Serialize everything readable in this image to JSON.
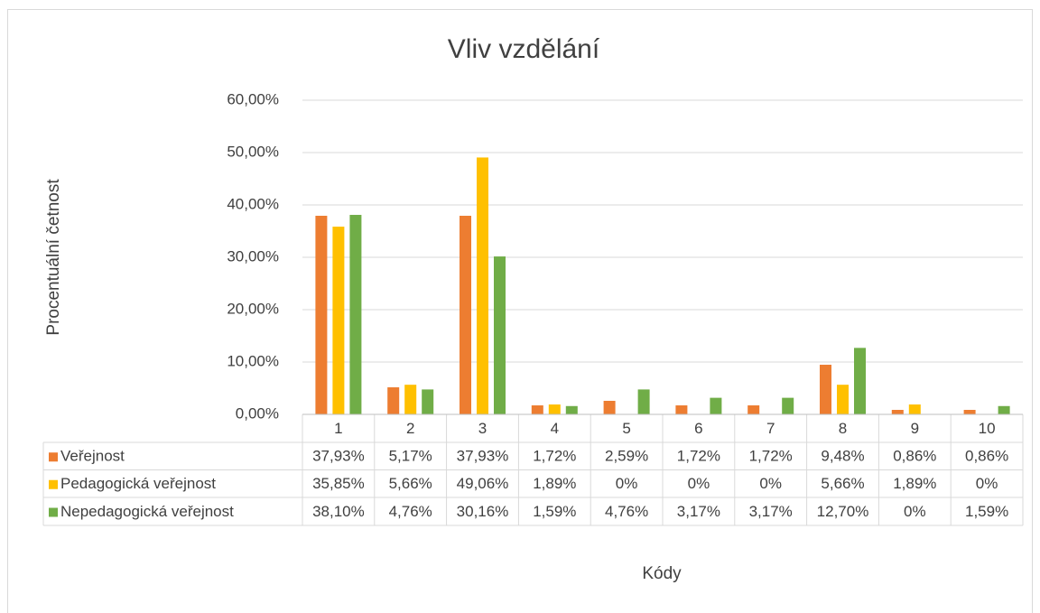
{
  "chart_data": {
    "type": "bar",
    "title": "Vliv vzdělání",
    "y_label": "Procentuální četnost",
    "x_label": "Kódy",
    "categories": [
      "1",
      "2",
      "3",
      "4",
      "5",
      "6",
      "7",
      "8",
      "9",
      "10"
    ],
    "series": [
      {
        "name": "Veřejnost",
        "color": "#ed7d31",
        "values": [
          37.93,
          5.17,
          37.93,
          1.72,
          2.59,
          1.72,
          1.72,
          9.48,
          0.86,
          0.86
        ],
        "value_labels": [
          "37,93%",
          "5,17%",
          "37,93%",
          "1,72%",
          "2,59%",
          "1,72%",
          "1,72%",
          "9,48%",
          "0,86%",
          "0,86%"
        ]
      },
      {
        "name": "Pedagogická veřejnost",
        "color": "#ffc000",
        "values": [
          35.85,
          5.66,
          49.06,
          1.89,
          0,
          0,
          0,
          5.66,
          1.89,
          0
        ],
        "value_labels": [
          "35,85%",
          "5,66%",
          "49,06%",
          "1,89%",
          "0%",
          "0%",
          "0%",
          "5,66%",
          "1,89%",
          "0%"
        ]
      },
      {
        "name": "Nepedagogická veřejnost",
        "color": "#70ad47",
        "values": [
          38.1,
          4.76,
          30.16,
          1.59,
          4.76,
          3.17,
          3.17,
          12.7,
          0,
          1.59
        ],
        "value_labels": [
          "38,10%",
          "4,76%",
          "30,16%",
          "1,59%",
          "4,76%",
          "3,17%",
          "3,17%",
          "12,70%",
          "0%",
          "1,59%"
        ]
      }
    ],
    "ylim": [
      0,
      60
    ],
    "yticks": [
      {
        "value": 0,
        "label": "0,00%"
      },
      {
        "value": 10,
        "label": "10,00%"
      },
      {
        "value": 20,
        "label": "20,00%"
      },
      {
        "value": 30,
        "label": "30,00%"
      },
      {
        "value": 40,
        "label": "40,00%"
      },
      {
        "value": 50,
        "label": "50,00%"
      },
      {
        "value": 60,
        "label": "60,00%"
      }
    ],
    "grid": true
  }
}
